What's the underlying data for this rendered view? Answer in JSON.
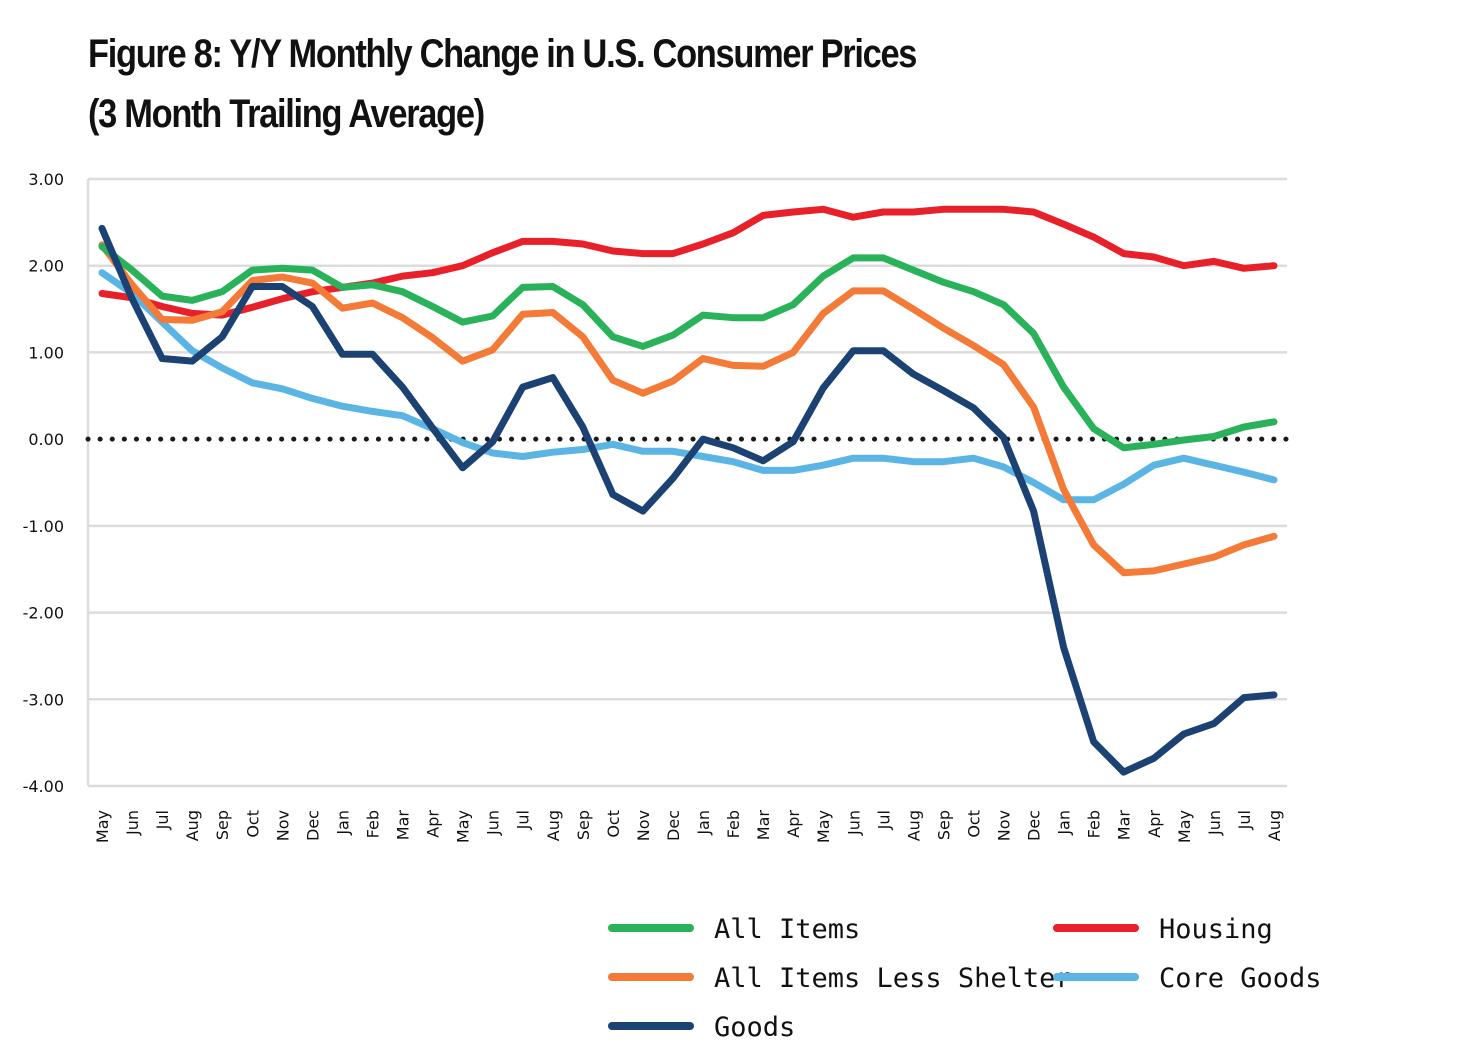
{
  "chart_data": {
    "type": "line",
    "title_line1": "Figure 8: Y/Y Monthly Change in U.S. Consumer Prices",
    "title_line2": "(3 Month Trailing Average)",
    "xlabel": "",
    "ylabel": "",
    "ylim": [
      -4,
      3
    ],
    "yticks": [
      3,
      2,
      1,
      0,
      -1,
      -2,
      -3,
      -4
    ],
    "ytick_labels": [
      "3.00",
      "2.00",
      "1.00",
      "0.00",
      "-1.00",
      "-2.00",
      "-3.00",
      "-4.00"
    ],
    "grid": true,
    "zero_line": "dotted",
    "categories": [
      "May",
      "Jun",
      "Jul",
      "Aug",
      "Sep",
      "Oct",
      "Nov",
      "Dec",
      "Jan",
      "Feb",
      "Mar",
      "Apr",
      "May",
      "Jun",
      "Jul",
      "Aug",
      "Sep",
      "Oct",
      "Nov",
      "Dec",
      "Jan",
      "Feb",
      "Mar",
      "Apr",
      "May",
      "Jun",
      "Jul",
      "Aug",
      "Sep",
      "Oct",
      "Nov",
      "Dec",
      "Jan",
      "Feb",
      "Mar",
      "Apr",
      "May",
      "Jun",
      "Jul",
      "Aug"
    ],
    "series": [
      {
        "name": "Housing",
        "color": "#e8202a",
        "values": [
          1.68,
          1.63,
          1.53,
          1.45,
          1.43,
          1.52,
          1.62,
          1.7,
          1.75,
          1.8,
          1.88,
          1.92,
          2.0,
          2.15,
          2.28,
          2.28,
          2.25,
          2.17,
          2.14,
          2.14,
          2.25,
          2.38,
          2.58,
          2.62,
          2.65,
          2.56,
          2.62,
          2.62,
          2.65,
          2.65,
          2.65,
          2.62,
          2.48,
          2.33,
          2.14,
          2.1,
          2.0,
          2.05,
          1.97,
          2.0
        ]
      },
      {
        "name": "All Items",
        "color": "#2ab25b",
        "values": [
          2.22,
          1.95,
          1.65,
          1.6,
          1.7,
          1.95,
          1.97,
          1.95,
          1.75,
          1.78,
          1.7,
          1.53,
          1.35,
          1.42,
          1.75,
          1.76,
          1.55,
          1.18,
          1.07,
          1.2,
          1.43,
          1.4,
          1.4,
          1.55,
          1.88,
          2.09,
          2.09,
          1.95,
          1.81,
          1.7,
          1.55,
          1.22,
          0.6,
          0.12,
          -0.1,
          -0.06,
          -0.01,
          0.03,
          0.14,
          0.2
        ]
      },
      {
        "name": "All Items Less Shelter",
        "color": "#f47b37",
        "values": [
          2.24,
          1.78,
          1.38,
          1.37,
          1.47,
          1.83,
          1.87,
          1.8,
          1.51,
          1.57,
          1.4,
          1.17,
          0.9,
          1.03,
          1.44,
          1.46,
          1.18,
          0.68,
          0.53,
          0.67,
          0.93,
          0.85,
          0.84,
          1.0,
          1.45,
          1.71,
          1.71,
          1.5,
          1.28,
          1.08,
          0.86,
          0.37,
          -0.58,
          -1.22,
          -1.54,
          -1.52,
          -1.44,
          -1.36,
          -1.22,
          -1.12
        ]
      },
      {
        "name": "Core Goods",
        "color": "#5ab5e5",
        "values": [
          1.92,
          1.68,
          1.35,
          1.02,
          0.82,
          0.65,
          0.58,
          0.47,
          0.38,
          0.32,
          0.27,
          0.12,
          -0.04,
          -0.16,
          -0.2,
          -0.15,
          -0.12,
          -0.06,
          -0.14,
          -0.14,
          -0.2,
          -0.26,
          -0.36,
          -0.36,
          -0.3,
          -0.22,
          -0.22,
          -0.26,
          -0.26,
          -0.22,
          -0.32,
          -0.5,
          -0.7,
          -0.7,
          -0.52,
          -0.3,
          -0.22,
          -0.3,
          -0.38,
          -0.47
        ]
      },
      {
        "name": "Goods",
        "color": "#1c4273",
        "values": [
          2.43,
          1.62,
          0.93,
          0.9,
          1.18,
          1.76,
          1.76,
          1.53,
          0.98,
          0.98,
          0.6,
          0.13,
          -0.33,
          -0.03,
          0.6,
          0.71,
          0.14,
          -0.64,
          -0.83,
          -0.45,
          0.0,
          -0.1,
          -0.25,
          -0.03,
          0.59,
          1.02,
          1.02,
          0.75,
          0.56,
          0.36,
          0.02,
          -0.83,
          -2.4,
          -3.49,
          -3.84,
          -3.68,
          -3.4,
          -3.28,
          -2.98,
          -2.95
        ]
      }
    ],
    "legend": [
      {
        "name": "All Items",
        "color": "#2ab25b"
      },
      {
        "name": "All Items Less Shelter",
        "color": "#f47b37"
      },
      {
        "name": "Goods",
        "color": "#1c4273"
      },
      {
        "name": "Housing",
        "color": "#e8202a"
      },
      {
        "name": "Core Goods",
        "color": "#5ab5e5"
      }
    ],
    "legend_position": "bottom-right",
    "series_order": [
      "Housing",
      "Core Goods",
      "All Items Less Shelter",
      "All Items",
      "Goods"
    ]
  }
}
